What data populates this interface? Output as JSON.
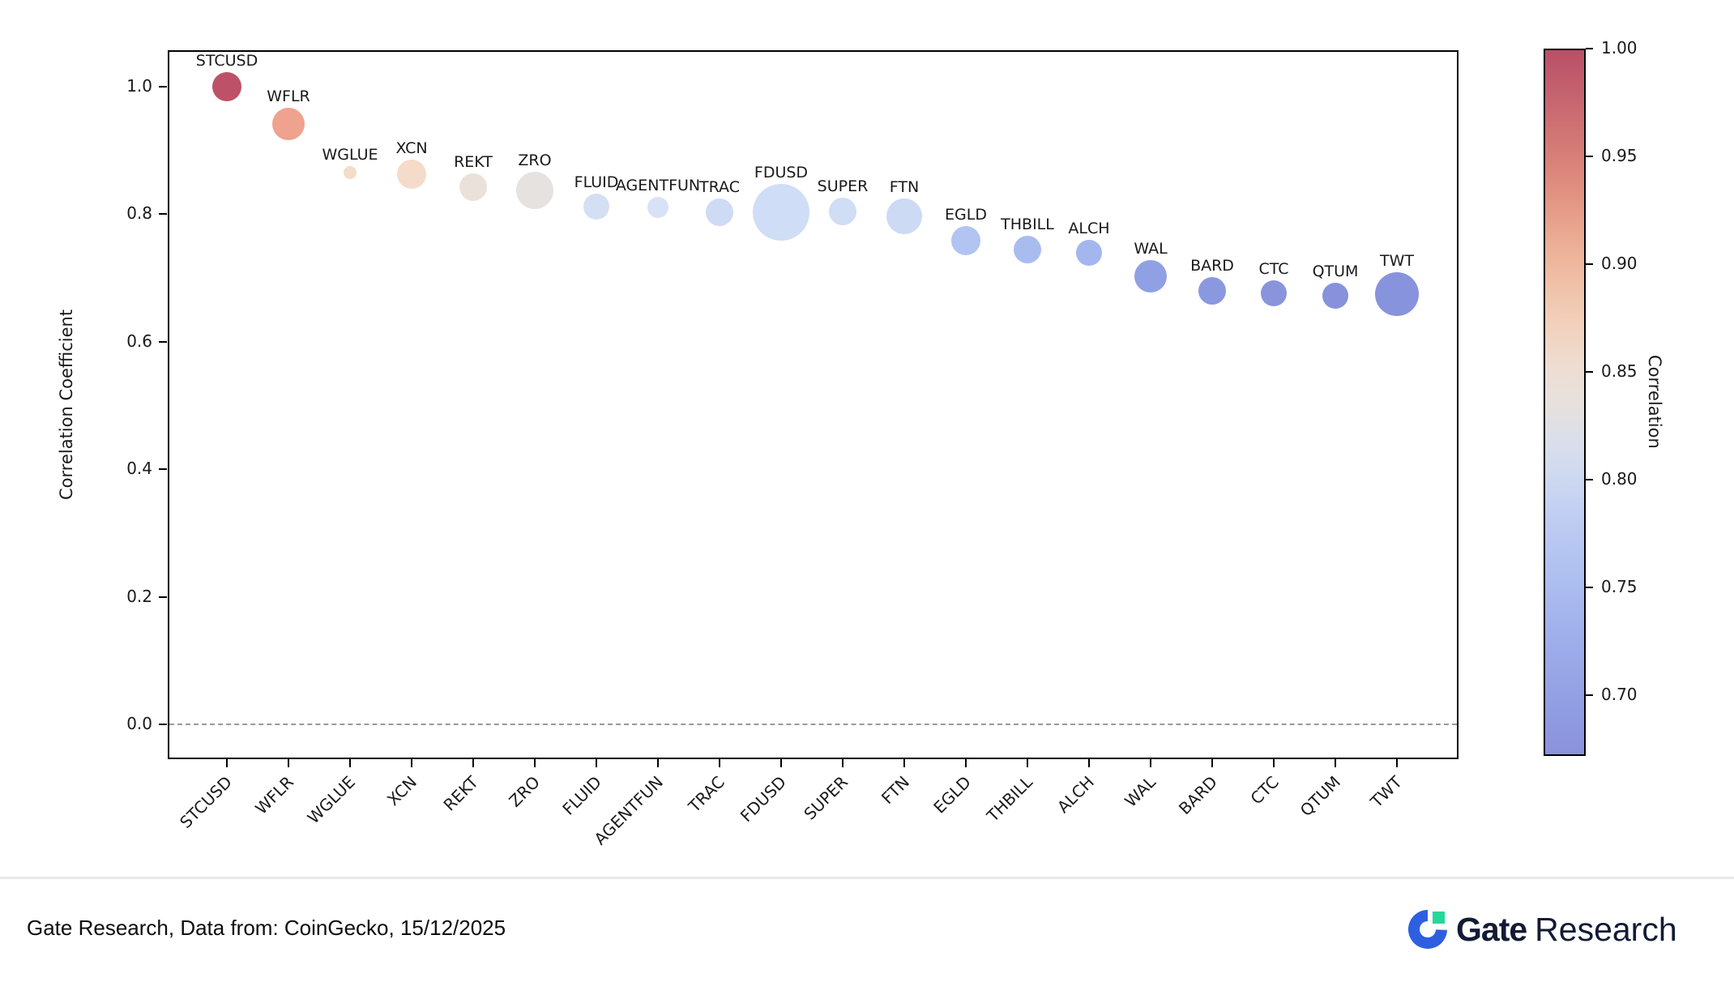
{
  "chart_data": {
    "type": "scatter",
    "subtype": "bubble",
    "title": "",
    "xlabel": "",
    "ylabel": "Correlation Coefficient",
    "grid": false,
    "y_ticks": [
      1.0,
      0.8,
      0.6,
      0.4,
      0.2,
      0.0
    ],
    "ylim": [
      -0.055,
      1.057
    ],
    "zero_reference_line": 0.0,
    "categories": [
      "STCUSD",
      "WFLR",
      "WGLUE",
      "XCN",
      "REKT",
      "ZRO",
      "FLUID",
      "AGENTFUN",
      "TRAC",
      "FDUSD",
      "SUPER",
      "FTN",
      "EGLD",
      "THBILL",
      "ALCH",
      "WAL",
      "BARD",
      "CTC",
      "QTUM",
      "TWT"
    ],
    "series": [
      {
        "name": "Correlation Coefficient",
        "values": [
          1.0,
          0.941,
          0.865,
          0.863,
          0.843,
          0.837,
          0.812,
          0.811,
          0.803,
          0.803,
          0.804,
          0.797,
          0.758,
          0.744,
          0.739,
          0.703,
          0.68,
          0.676,
          0.672,
          0.675
        ]
      }
    ],
    "bubble_radius_px": [
      18,
      20,
      8,
      18,
      17,
      23,
      16,
      13,
      17,
      35,
      17,
      22,
      18,
      17,
      16,
      20,
      17,
      16,
      16,
      27
    ],
    "point_colors": [
      "#bd5168",
      "#efa28e",
      "#f3dcc8",
      "#f4dbca",
      "#eae1da",
      "#e5e2e0",
      "#d4dff4",
      "#d8e2f6",
      "#cedbf4",
      "#cfddf6",
      "#cfddf5",
      "#cddaf4",
      "#b1c4f2",
      "#a9bcf0",
      "#a4b6ee",
      "#90a0e5",
      "#8a98e0",
      "#8994dd",
      "#8791dc",
      "#8893dd"
    ],
    "colorbar_label": "Correlation",
    "colorbar_colormap": "coolwarm",
    "colorbar_ticks": [
      1.0,
      0.95,
      0.9,
      0.85,
      0.8,
      0.75,
      0.7
    ],
    "colorbar_range": [
      0.672,
      1.0
    ],
    "legend_position": "none"
  },
  "footer": {
    "source_text": "Gate Research, Data from: CoinGecko, 15/12/2025",
    "logo": {
      "brand": "Gate",
      "suffix": "Research"
    }
  }
}
